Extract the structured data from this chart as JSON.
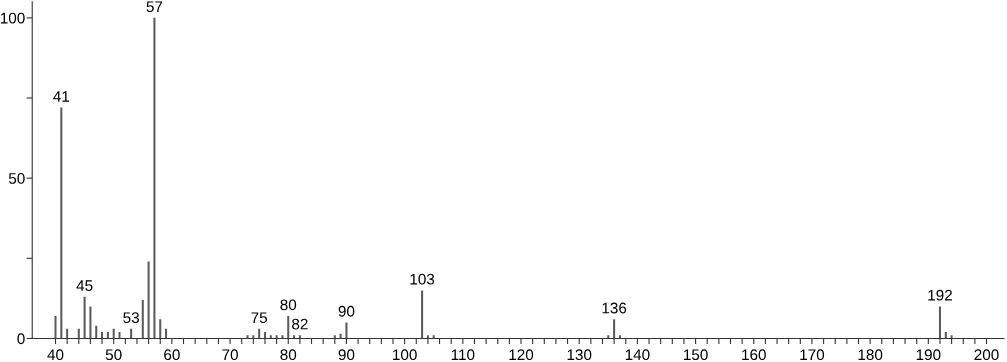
{
  "chart_data": {
    "type": "bar",
    "color": "#5a5a5a",
    "x": [
      40,
      41,
      42,
      44,
      45,
      46,
      47,
      48,
      49,
      50,
      51,
      53,
      55,
      56,
      57,
      58,
      59,
      73,
      74,
      75,
      76,
      77,
      78,
      79,
      80,
      81,
      82,
      88,
      89,
      90,
      103,
      104,
      105,
      135,
      136,
      137,
      192,
      193,
      194
    ],
    "values": [
      7,
      72,
      3,
      3,
      13,
      10,
      4,
      2,
      2,
      3,
      2,
      3,
      12,
      24,
      100,
      6,
      3,
      1,
      1,
      3,
      2,
      1,
      1,
      1,
      7,
      1,
      1,
      1,
      1.5,
      5,
      15,
      1,
      1,
      1,
      6,
      1,
      10,
      2,
      1
    ],
    "xlim": [
      36,
      203
    ],
    "ylim": [
      0,
      105
    ],
    "xticks": [
      40,
      {
        "value": 42,
        "label": null
      },
      {
        "value": 44,
        "label": null
      },
      {
        "value": 46,
        "label": null
      },
      {
        "value": 48,
        "label": null
      },
      50,
      {
        "value": 52,
        "label": null
      },
      {
        "value": 54,
        "label": null
      },
      {
        "value": 56,
        "label": null
      },
      {
        "value": 58,
        "label": null
      },
      60,
      {
        "value": 62,
        "label": null
      },
      {
        "value": 64,
        "label": null
      },
      {
        "value": 66,
        "label": null
      },
      {
        "value": 68,
        "label": null
      },
      70,
      {
        "value": 72,
        "label": null
      },
      {
        "value": 74,
        "label": null
      },
      {
        "value": 76,
        "label": null
      },
      {
        "value": 78,
        "label": null
      },
      80,
      {
        "value": 82,
        "label": null
      },
      {
        "value": 84,
        "label": null
      },
      {
        "value": 86,
        "label": null
      },
      {
        "value": 88,
        "label": null
      },
      90,
      {
        "value": 92,
        "label": null
      },
      {
        "value": 94,
        "label": null
      },
      {
        "value": 96,
        "label": null
      },
      {
        "value": 98,
        "label": null
      },
      100,
      {
        "value": 102,
        "label": null
      },
      {
        "value": 104,
        "label": null
      },
      {
        "value": 106,
        "label": null
      },
      {
        "value": 108,
        "label": null
      },
      110,
      {
        "value": 112,
        "label": null
      },
      {
        "value": 114,
        "label": null
      },
      {
        "value": 116,
        "label": null
      },
      {
        "value": 118,
        "label": null
      },
      120,
      {
        "value": 122,
        "label": null
      },
      {
        "value": 124,
        "label": null
      },
      {
        "value": 126,
        "label": null
      },
      {
        "value": 128,
        "label": null
      },
      130,
      {
        "value": 132,
        "label": null
      },
      {
        "value": 134,
        "label": null
      },
      {
        "value": 136,
        "label": null
      },
      {
        "value": 138,
        "label": null
      },
      140,
      {
        "value": 142,
        "label": null
      },
      {
        "value": 144,
        "label": null
      },
      {
        "value": 146,
        "label": null
      },
      {
        "value": 148,
        "label": null
      },
      150,
      {
        "value": 152,
        "label": null
      },
      {
        "value": 154,
        "label": null
      },
      {
        "value": 156,
        "label": null
      },
      {
        "value": 158,
        "label": null
      },
      160,
      {
        "value": 162,
        "label": null
      },
      {
        "value": 164,
        "label": null
      },
      {
        "value": 166,
        "label": null
      },
      {
        "value": 168,
        "label": null
      },
      170,
      {
        "value": 172,
        "label": null
      },
      {
        "value": 174,
        "label": null
      },
      {
        "value": 176,
        "label": null
      },
      {
        "value": 178,
        "label": null
      },
      180,
      {
        "value": 182,
        "label": null
      },
      {
        "value": 184,
        "label": null
      },
      {
        "value": 186,
        "label": null
      },
      {
        "value": 188,
        "label": null
      },
      190,
      {
        "value": 192,
        "label": null
      },
      {
        "value": 194,
        "label": null
      },
      {
        "value": 196,
        "label": null
      },
      {
        "value": 198,
        "label": null
      },
      200
    ],
    "yticks": [
      0,
      {
        "value": 25,
        "label": null
      },
      50,
      {
        "value": 75,
        "label": null
      },
      100
    ],
    "grid": false,
    "annotations": [
      {
        "text": "41",
        "x": 41,
        "y": 72
      },
      {
        "text": "45",
        "x": 45,
        "y": 13
      },
      {
        "text": "53",
        "x": 53,
        "y": 3
      },
      {
        "text": "57",
        "x": 57,
        "y": 100
      },
      {
        "text": "75",
        "x": 75,
        "y": 3
      },
      {
        "text": "80",
        "x": 80,
        "y": 7
      },
      {
        "text": "82",
        "x": 82,
        "y": 1
      },
      {
        "text": "90",
        "x": 90,
        "y": 5
      },
      {
        "text": "103",
        "x": 103,
        "y": 15
      },
      {
        "text": "136",
        "x": 136,
        "y": 6
      },
      {
        "text": "192",
        "x": 192,
        "y": 10
      }
    ]
  }
}
